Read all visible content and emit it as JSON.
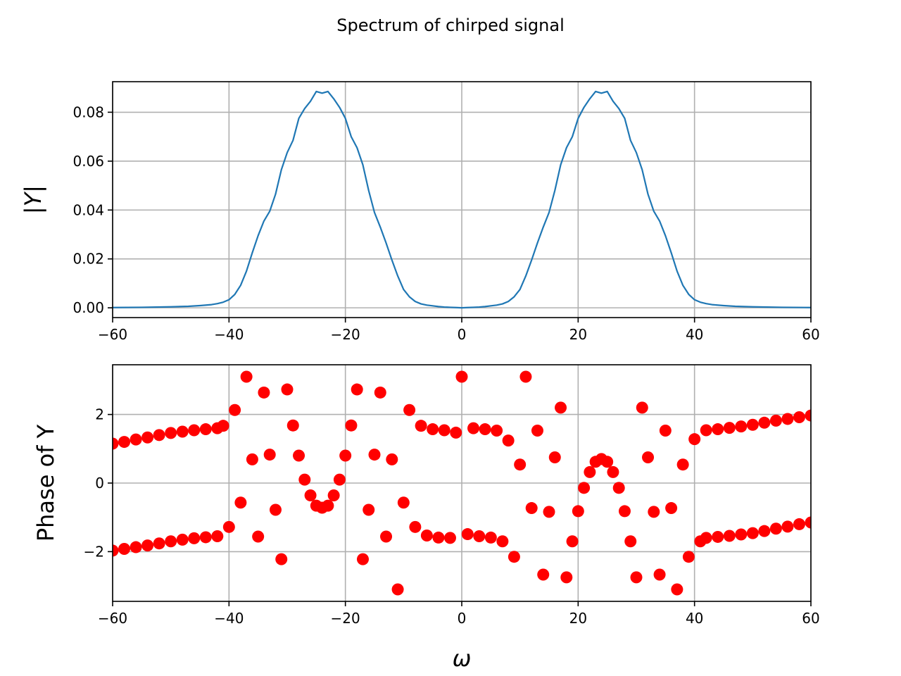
{
  "figure": {
    "title": "Spectrum of chirped signal"
  },
  "chart_data": [
    {
      "type": "line",
      "xlabel": "",
      "ylabel": "|Y|",
      "xlim": [
        -60,
        60
      ],
      "ylim": [
        -0.004,
        0.0925
      ],
      "xticks": [
        -60,
        -40,
        -20,
        0,
        20,
        40,
        60
      ],
      "xtick_labels": [
        "−60",
        "−40",
        "−20",
        "0",
        "20",
        "40",
        "60"
      ],
      "yticks": [
        0,
        0.02,
        0.04,
        0.06,
        0.08
      ],
      "ytick_labels": [
        "0.00",
        "0.02",
        "0.04",
        "0.06",
        "0.08"
      ],
      "grid": true,
      "color": "#1f77b4",
      "series": [
        {
          "x": [
            -60,
            -55,
            -50,
            -47,
            -45,
            -43,
            -42,
            -41,
            -40,
            -39,
            -38,
            -37,
            -36,
            -35,
            -34,
            -33,
            -32,
            -31,
            -30,
            -29,
            -28,
            -27,
            -26,
            -25,
            -24,
            -23,
            -22,
            -21,
            -20,
            -19,
            -18,
            -17,
            -16,
            -15,
            -14,
            -13,
            -12,
            -11,
            -10,
            -9,
            -8,
            -7,
            -6,
            -5,
            -4,
            -3,
            -2,
            -1,
            0,
            1,
            2,
            3,
            4,
            5,
            6,
            7,
            8,
            9,
            10,
            11,
            12,
            13,
            14,
            15,
            16,
            17,
            18,
            19,
            20,
            21,
            22,
            23,
            24,
            25,
            26,
            27,
            28,
            29,
            30,
            31,
            32,
            33,
            34,
            35,
            36,
            37,
            38,
            39,
            40,
            41,
            42,
            43,
            45,
            47,
            50,
            55,
            60
          ],
          "y": [
            0.0001,
            0.0002,
            0.0004,
            0.0006,
            0.0009,
            0.0013,
            0.0017,
            0.0023,
            0.0033,
            0.0055,
            0.0092,
            0.015,
            0.0225,
            0.0295,
            0.0355,
            0.0395,
            0.0465,
            0.0565,
            0.0635,
            0.0685,
            0.0775,
            0.0815,
            0.0845,
            0.0885,
            0.0878,
            0.0885,
            0.0855,
            0.082,
            0.0775,
            0.07,
            0.0655,
            0.0585,
            0.048,
            0.039,
            0.033,
            0.0265,
            0.0195,
            0.013,
            0.0075,
            0.0045,
            0.0026,
            0.0016,
            0.0011,
            0.0008,
            0.0005,
            0.0003,
            0.0002,
            0.0001,
            0.0,
            0.0001,
            0.0002,
            0.0003,
            0.0005,
            0.0008,
            0.0011,
            0.0016,
            0.0026,
            0.0045,
            0.0075,
            0.013,
            0.0195,
            0.0265,
            0.033,
            0.039,
            0.048,
            0.0585,
            0.0655,
            0.07,
            0.0775,
            0.082,
            0.0855,
            0.0885,
            0.0878,
            0.0885,
            0.0845,
            0.0815,
            0.0775,
            0.0685,
            0.0635,
            0.0565,
            0.0465,
            0.0395,
            0.0355,
            0.0295,
            0.0225,
            0.015,
            0.0092,
            0.0055,
            0.0033,
            0.0023,
            0.0017,
            0.0013,
            0.0009,
            0.0006,
            0.0004,
            0.0002,
            0.0001
          ]
        }
      ]
    },
    {
      "type": "scatter",
      "xlabel": "ω",
      "ylabel": "Phase of Y",
      "xlim": [
        -60,
        60
      ],
      "ylim": [
        -3.45,
        3.45
      ],
      "xticks": [
        -60,
        -40,
        -20,
        0,
        20,
        40,
        60
      ],
      "xtick_labels": [
        "−60",
        "−40",
        "−20",
        "0",
        "20",
        "40",
        "60"
      ],
      "yticks": [
        -2,
        0,
        2
      ],
      "ytick_labels": [
        "−2",
        "0",
        "2"
      ],
      "grid": true,
      "color": "#ff0000",
      "series": [
        {
          "x": [
            -60,
            -58,
            -56,
            -54,
            -52,
            -50,
            -48,
            -46,
            -44,
            -42,
            -60,
            -58,
            -56,
            -54,
            -52,
            -50,
            -48,
            -46,
            -44,
            -42,
            -41,
            -40,
            -39,
            -38,
            -37,
            -36,
            -35,
            -34,
            -33,
            -32,
            -31,
            -30,
            -29,
            -28,
            -27,
            -26,
            -25,
            -24,
            -23,
            -22,
            -21,
            -20,
            -19,
            -18,
            -17,
            -16,
            -15,
            -14,
            -13,
            -12,
            -11,
            -10,
            -9,
            -8,
            -7,
            -6,
            -5,
            -4,
            -3,
            -2,
            -1,
            0,
            1,
            2,
            3,
            4,
            5,
            6,
            7,
            8,
            9,
            10,
            11,
            12,
            13,
            14,
            15,
            16,
            17,
            18,
            19,
            20,
            21,
            22,
            23,
            24,
            25,
            26,
            27,
            28,
            29,
            30,
            31,
            32,
            33,
            34,
            35,
            36,
            37,
            38,
            39,
            40,
            41,
            42,
            44,
            46,
            48,
            50,
            52,
            54,
            56,
            58,
            60,
            42,
            44,
            46,
            48,
            50,
            52,
            54,
            56,
            58,
            60
          ],
          "y": [
            1.15,
            1.2,
            1.27,
            1.33,
            1.4,
            1.46,
            1.5,
            1.54,
            1.57,
            1.6,
            -1.97,
            -1.92,
            -1.87,
            -1.82,
            -1.76,
            -1.7,
            -1.65,
            -1.61,
            -1.58,
            -1.55,
            1.67,
            -1.28,
            2.13,
            -0.57,
            3.1,
            0.69,
            -1.56,
            2.64,
            0.83,
            -0.78,
            -2.22,
            2.73,
            1.68,
            0.8,
            0.1,
            -0.36,
            -0.66,
            -0.72,
            -0.66,
            -0.36,
            0.1,
            0.8,
            1.68,
            2.73,
            -2.22,
            -0.78,
            0.83,
            2.64,
            -1.56,
            0.69,
            -3.1,
            -0.57,
            2.13,
            -1.28,
            1.67,
            -1.53,
            1.57,
            -1.59,
            1.54,
            -1.6,
            1.47,
            3.1,
            -1.49,
            1.6,
            -1.55,
            1.57,
            -1.59,
            1.53,
            -1.7,
            1.24,
            -2.15,
            0.54,
            3.1,
            -0.73,
            1.53,
            -2.67,
            -0.84,
            0.75,
            2.2,
            -2.75,
            -1.7,
            -0.82,
            -0.14,
            0.32,
            0.62,
            0.7,
            0.62,
            0.32,
            -0.14,
            -0.82,
            -1.7,
            -2.75,
            2.2,
            0.75,
            -0.84,
            -2.67,
            1.53,
            -0.73,
            -3.1,
            0.54,
            -2.15,
            1.28,
            -1.7,
            1.54,
            1.57,
            1.61,
            1.65,
            1.7,
            1.76,
            1.82,
            1.87,
            1.92,
            1.97,
            -1.6,
            -1.57,
            -1.54,
            -1.5,
            -1.46,
            -1.4,
            -1.33,
            -1.27,
            -1.2,
            -1.15
          ]
        }
      ]
    }
  ]
}
